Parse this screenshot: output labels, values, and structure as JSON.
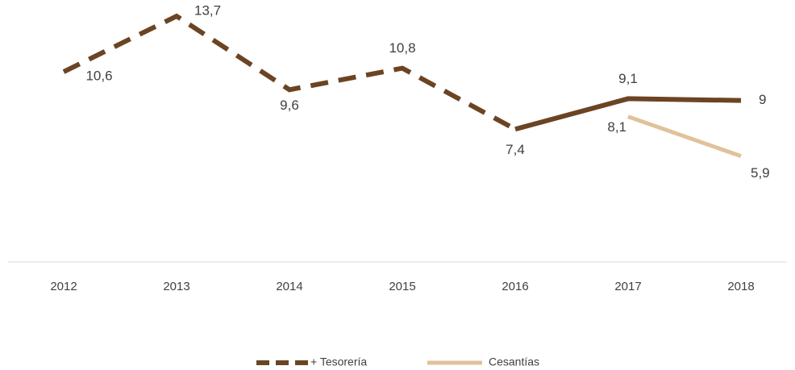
{
  "chart_data": {
    "type": "line",
    "categories": [
      "2012",
      "2013",
      "2014",
      "2015",
      "2016",
      "2017",
      "2018"
    ],
    "ylim": [
      0,
      14.6
    ],
    "series": [
      {
        "name": "+ Tesorería",
        "color": "#6b4423",
        "values": [
          10.6,
          13.7,
          9.6,
          10.8,
          7.4,
          9.1,
          9
        ],
        "value_labels": [
          "10,6",
          "13,7",
          "9,6",
          "10,8",
          "7,4",
          "9,1",
          "9"
        ],
        "segment_styles": [
          "dashed",
          "dashed",
          "dashed",
          "dashed",
          "solid",
          "solid"
        ]
      },
      {
        "name": "Cesantías",
        "color": "#e0c29a",
        "values": [
          null,
          null,
          null,
          null,
          null,
          8.1,
          5.9
        ],
        "value_labels": [
          null,
          null,
          null,
          null,
          null,
          "8,1",
          "5,9"
        ]
      }
    ],
    "legend": "bottom"
  }
}
